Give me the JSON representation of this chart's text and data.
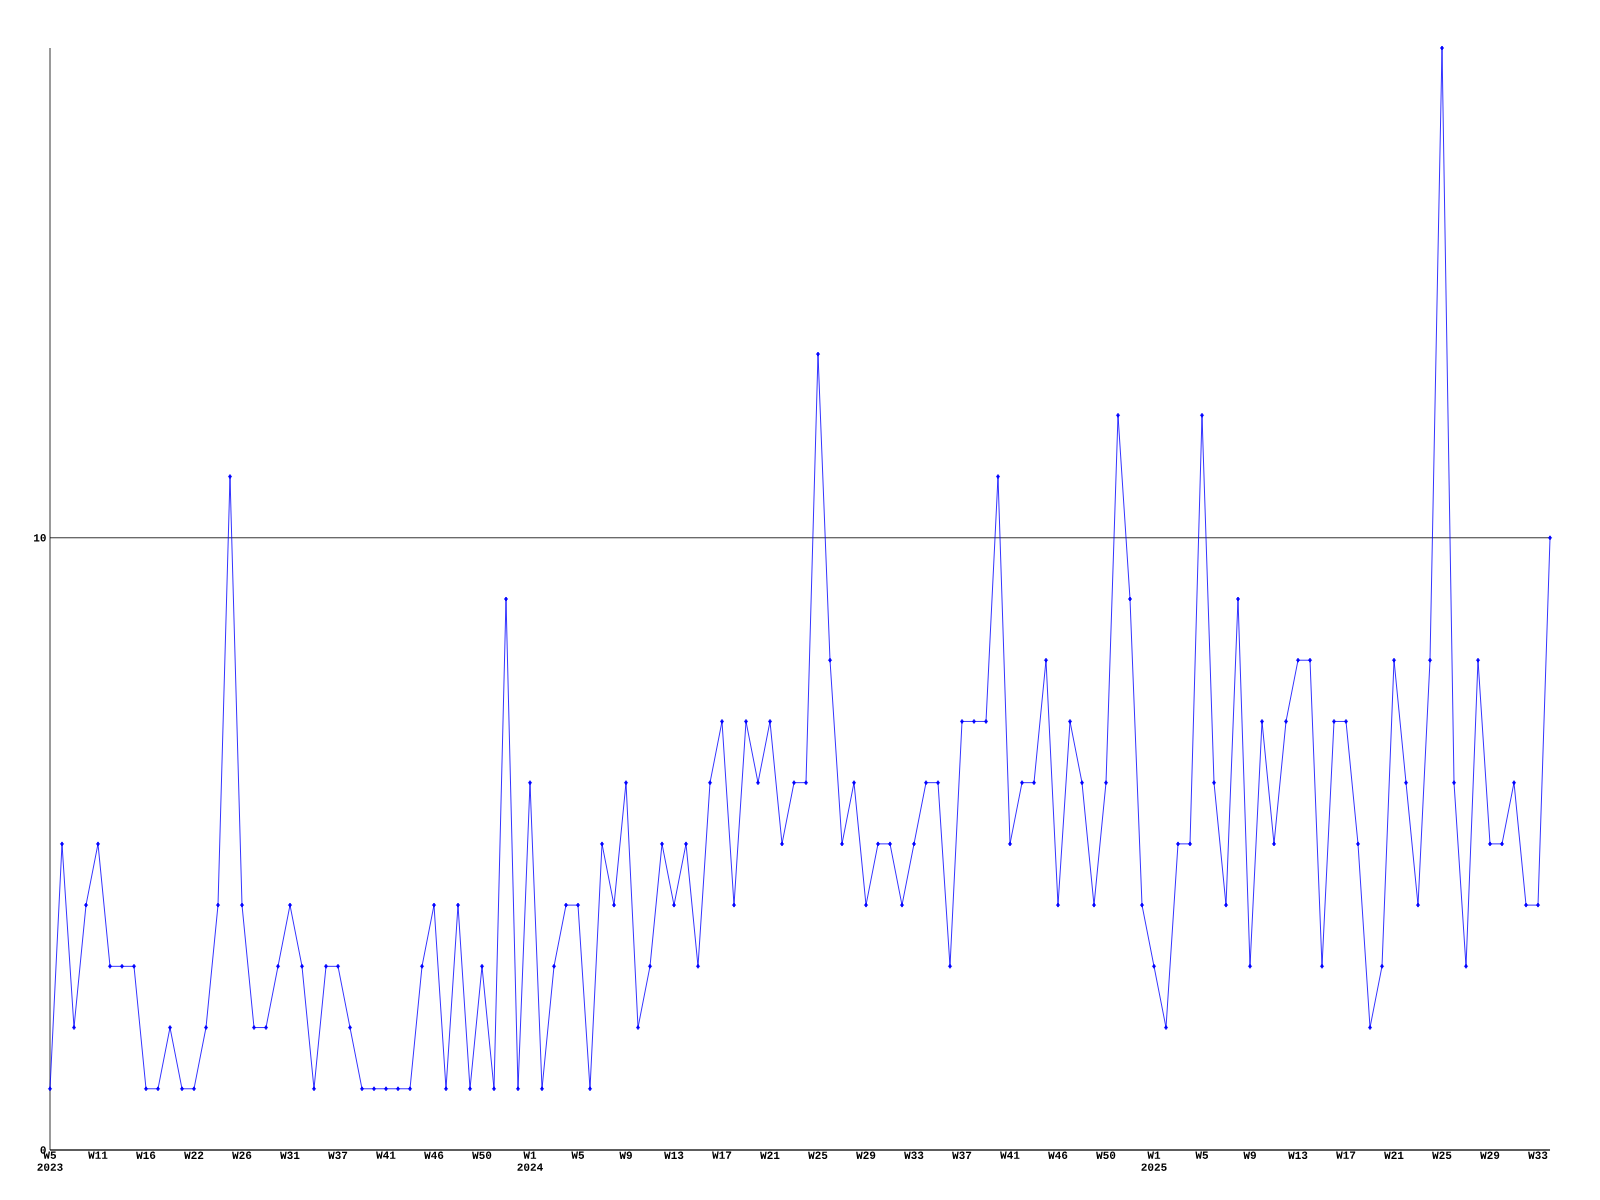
{
  "chart_data": {
    "type": "line",
    "categories": [
      "W5 2023",
      null,
      null,
      null,
      "W11",
      null,
      null,
      null,
      "W16",
      null,
      null,
      null,
      "W22",
      null,
      null,
      null,
      "W26",
      null,
      null,
      null,
      "W31",
      null,
      null,
      null,
      "W37",
      null,
      null,
      null,
      "W41",
      null,
      null,
      null,
      "W46",
      null,
      null,
      null,
      "W50",
      null,
      null,
      null,
      "W1 2024",
      null,
      null,
      null,
      "W5",
      null,
      null,
      null,
      "W9",
      null,
      null,
      null,
      "W13",
      null,
      null,
      null,
      "W17",
      null,
      null,
      null,
      "W21",
      null,
      null,
      null,
      "W25",
      null,
      null,
      null,
      "W29",
      null,
      null,
      null,
      "W33",
      null,
      null,
      null,
      "W37",
      null,
      null,
      null,
      "W41",
      null,
      null,
      null,
      "W46",
      null,
      null,
      null,
      "W50",
      null,
      null,
      null,
      "W1 2025",
      null,
      null,
      null,
      "W5",
      null,
      null,
      null,
      "W9",
      null,
      null,
      null,
      "W13",
      null,
      null,
      null,
      "W17",
      null,
      null,
      null,
      "W21",
      null,
      null,
      null,
      "W25",
      null,
      null,
      null,
      "W29",
      null,
      null,
      null,
      "W33",
      null
    ],
    "values": [
      1,
      5,
      2,
      4,
      5,
      3,
      3,
      3,
      1,
      1,
      2,
      1,
      1,
      2,
      4,
      11,
      4,
      2,
      2,
      3,
      4,
      3,
      1,
      3,
      3,
      2,
      1,
      1,
      1,
      1,
      1,
      3,
      4,
      1,
      4,
      1,
      3,
      1,
      9,
      1,
      6,
      1,
      3,
      4,
      4,
      1,
      5,
      4,
      6,
      2,
      3,
      5,
      4,
      5,
      3,
      6,
      7,
      4,
      7,
      6,
      7,
      5,
      6,
      6,
      13,
      8,
      5,
      6,
      4,
      5,
      5,
      4,
      5,
      6,
      6,
      3,
      7,
      7,
      7,
      11,
      5,
      6,
      6,
      8,
      4,
      7,
      6,
      4,
      6,
      12,
      9,
      4,
      3,
      2,
      5,
      5,
      12,
      6,
      4,
      9,
      3,
      7,
      5,
      7,
      8,
      8,
      3,
      7,
      7,
      5,
      2,
      3,
      8,
      6,
      4,
      8,
      18,
      6,
      3,
      8,
      5,
      5,
      6,
      4,
      4,
      10
    ],
    "color": "#0000ff",
    "marker": "diamond",
    "ylim": [
      0,
      18
    ],
    "yticks": [
      0,
      10
    ],
    "grid": "y"
  }
}
